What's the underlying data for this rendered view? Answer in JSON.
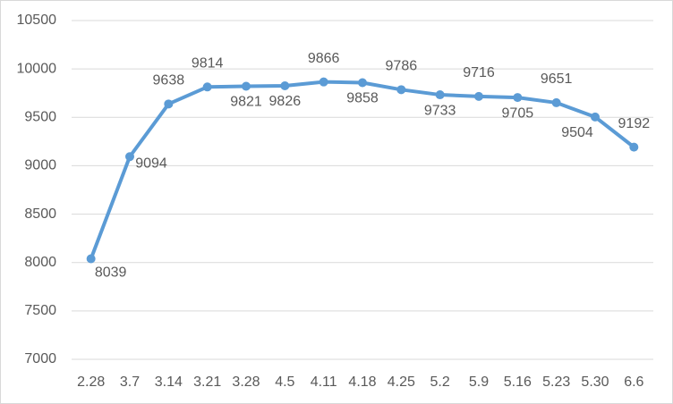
{
  "chart_data": {
    "type": "line",
    "categories": [
      "2.28",
      "3.7",
      "3.14",
      "3.21",
      "3.28",
      "4.5",
      "4.11",
      "4.18",
      "4.25",
      "5.2",
      "5.9",
      "5.16",
      "5.23",
      "5.30",
      "6.6"
    ],
    "series": [
      {
        "color": "#5b9bd5",
        "values": [
          8039,
          9094,
          9638,
          9814,
          9821,
          9826,
          9866,
          9858,
          9786,
          9733,
          9716,
          9705,
          9651,
          9504,
          9192
        ]
      }
    ],
    "ylim": [
      7000,
      10500
    ],
    "yticks": [
      7000,
      7500,
      8000,
      8500,
      9000,
      9500,
      10000,
      10500
    ],
    "grid": true
  }
}
